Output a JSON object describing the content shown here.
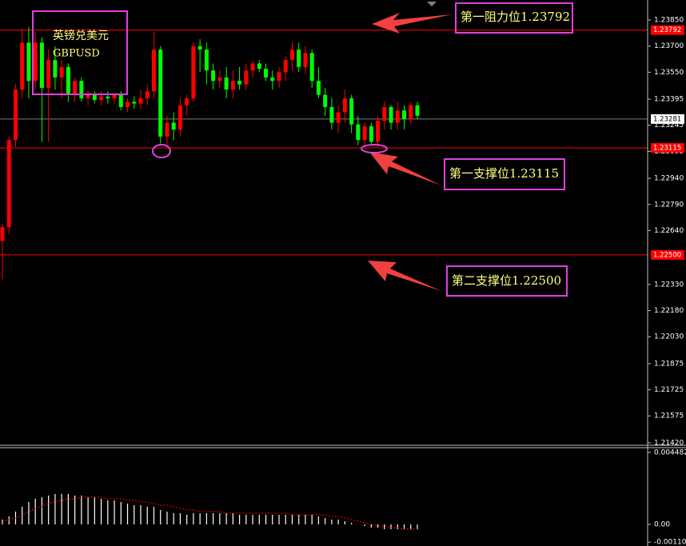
{
  "chart_data": [
    {
      "type": "candlestick",
      "title": "英镑兑美元",
      "subtitle": "GBPUSD",
      "up_color": "#ff0000",
      "down_color": "#00ff00",
      "ylim": [
        1.21406,
        1.23965
      ],
      "yticks": [
        {
          "value": 1.2385,
          "label": "1.23850"
        },
        {
          "value": 1.237,
          "label": "1.23700"
        },
        {
          "value": 1.2355,
          "label": "1.23550"
        },
        1.23395,
        1.23245,
        1.23095,
        {
          "value": 1.2294,
          "label": "1.22940"
        },
        {
          "value": 1.2279,
          "label": "1.22790"
        },
        {
          "value": 1.2264,
          "label": "1.22640"
        },
        {
          "value": 1.2233,
          "label": "1.22330"
        },
        {
          "value": 1.2218,
          "label": "1.22180"
        },
        {
          "value": 1.2203,
          "label": "1.22030"
        },
        1.21875,
        1.21725,
        1.21575,
        {
          "value": 1.2142,
          "label": "1.21420"
        }
      ],
      "price_lines": [
        1.23792,
        1.23281,
        1.23115,
        {
          "value": 1.225,
          "label": "1.22500"
        }
      ],
      "price_line_colors": [
        "#ff0000",
        "#808080",
        "#ff0000",
        "#ff0000"
      ],
      "annotations": [
        "第一阻力位1.23792",
        "第一支撑位1.23115",
        "第二支撑位1.22500"
      ],
      "open": [
        1.2258,
        1.2266,
        1.2316,
        1.2345,
        1.2372,
        1.235,
        1.2372,
        1.2346,
        1.2362,
        1.2352,
        1.2358,
        1.2342,
        1.235,
        1.234,
        1.2342,
        1.2339,
        1.2341,
        1.234,
        1.2342,
        1.2335,
        1.2338,
        1.2337,
        1.234,
        1.2344,
        1.2368,
        1.2318,
        1.2326,
        1.2322,
        1.2336,
        1.234,
        1.237,
        1.2368,
        1.2356,
        1.235,
        1.2352,
        1.2345,
        1.235,
        1.2348,
        1.2356,
        1.236,
        1.2357,
        1.2352,
        1.235,
        1.2355,
        1.2362,
        1.2368,
        1.2358,
        1.2366,
        1.235,
        1.2342,
        1.2335,
        1.2326,
        1.2332,
        1.234,
        1.2325,
        1.2316,
        1.2324,
        1.2315,
        1.2327,
        1.2335,
        1.2326,
        1.2333,
        1.2328,
        1.2336
      ],
      "high": [
        1.2268,
        1.2318,
        1.2348,
        1.238,
        1.2381,
        1.2378,
        1.2375,
        1.2368,
        1.237,
        1.2362,
        1.236,
        1.2352,
        1.2352,
        1.2344,
        1.2344,
        1.2344,
        1.2344,
        1.2343,
        1.2344,
        1.234,
        1.2341,
        1.2345,
        1.2348,
        1.2378,
        1.237,
        1.233,
        1.2332,
        1.234,
        1.2342,
        1.2372,
        1.2374,
        1.2372,
        1.236,
        1.2356,
        1.2358,
        1.2356,
        1.2358,
        1.236,
        1.2362,
        1.2362,
        1.236,
        1.2356,
        1.2358,
        1.2364,
        1.2372,
        1.2372,
        1.237,
        1.2368,
        1.2358,
        1.2346,
        1.234,
        1.2336,
        1.2345,
        1.2342,
        1.233,
        1.2326,
        1.2326,
        1.233,
        1.2338,
        1.2336,
        1.2338,
        1.2336,
        1.2338,
        1.2338
      ],
      "low": [
        1.2236,
        1.2262,
        1.2312,
        1.234,
        1.234,
        1.2345,
        1.2315,
        1.2315,
        1.2345,
        1.234,
        1.2338,
        1.2338,
        1.2338,
        1.2336,
        1.2337,
        1.2336,
        1.2337,
        1.2337,
        1.2333,
        1.2332,
        1.2334,
        1.2334,
        1.2336,
        1.234,
        1.2314,
        1.2312,
        1.2316,
        1.2318,
        1.233,
        1.2338,
        1.2355,
        1.2348,
        1.2345,
        1.2346,
        1.234,
        1.234,
        1.2345,
        1.2345,
        1.2352,
        1.2355,
        1.235,
        1.2345,
        1.2346,
        1.235,
        1.2356,
        1.2355,
        1.2354,
        1.2346,
        1.234,
        1.233,
        1.2322,
        1.232,
        1.2326,
        1.232,
        1.2313,
        1.2312,
        1.2313,
        1.2312,
        1.2322,
        1.2322,
        1.2322,
        1.2322,
        1.2325,
        1.2328
      ],
      "close": [
        1.2266,
        1.2316,
        1.2345,
        1.2372,
        1.235,
        1.2372,
        1.2346,
        1.2362,
        1.2352,
        1.2358,
        1.2342,
        1.235,
        1.234,
        1.2342,
        1.2339,
        1.2341,
        1.234,
        1.2342,
        1.2335,
        1.2338,
        1.2337,
        1.234,
        1.2344,
        1.2368,
        1.2318,
        1.2326,
        1.2322,
        1.2336,
        1.234,
        1.237,
        1.2368,
        1.2356,
        1.235,
        1.2352,
        1.2345,
        1.235,
        1.2348,
        1.2356,
        1.236,
        1.2357,
        1.2352,
        1.235,
        1.2355,
        1.2362,
        1.2368,
        1.2358,
        1.2366,
        1.235,
        1.2342,
        1.2335,
        1.2326,
        1.2332,
        1.234,
        1.2325,
        1.2316,
        1.2324,
        1.2315,
        1.2327,
        1.2335,
        1.2326,
        1.2333,
        1.2328,
        1.2336,
        1.233
      ]
    },
    {
      "type": "macd",
      "color": "#ffffff",
      "signal_color": "#ff0000",
      "ylim": [
        -0.001345,
        0.004781
      ],
      "yticks": [
        0.004482,
        {
          "value": 0,
          "label": "0.00"
        },
        -0.001103
      ],
      "values": [
        0.0003,
        0.0005,
        0.0008,
        0.0011,
        0.0014,
        0.0016,
        0.0017,
        0.0018,
        0.0019,
        0.0019,
        0.0019,
        0.0018,
        0.0018,
        0.0017,
        0.0017,
        0.0016,
        0.0015,
        0.0015,
        0.0014,
        0.0013,
        0.0012,
        0.0012,
        0.0011,
        0.0011,
        0.0009,
        0.0008,
        0.0007,
        0.0007,
        0.0006,
        0.0007,
        0.0007,
        0.0007,
        0.0007,
        0.0007,
        0.0007,
        0.0007,
        0.0006,
        0.0006,
        0.0006,
        0.0006,
        0.0006,
        0.0006,
        0.0006,
        0.0006,
        0.0006,
        0.0006,
        0.0006,
        0.0006,
        0.0005,
        0.0004,
        0.0003,
        0.0003,
        0.0002,
        0.0001,
        0.0,
        -0.0001,
        -0.0002,
        -0.0002,
        -0.0003,
        -0.0003,
        -0.0003,
        -0.0003,
        -0.0003,
        -0.0003
      ],
      "signal": [
        0.0002,
        0.0003,
        0.0004,
        0.0006,
        0.0008,
        0.001,
        0.0011,
        0.0013,
        0.0014,
        0.0015,
        0.0016,
        0.0016,
        0.0017,
        0.0017,
        0.0017,
        0.0017,
        0.0016,
        0.0016,
        0.0016,
        0.0015,
        0.0015,
        0.0014,
        0.0014,
        0.0013,
        0.0012,
        0.0012,
        0.0011,
        0.001,
        0.0009,
        0.0009,
        0.0008,
        0.0008,
        0.0008,
        0.0008,
        0.0007,
        0.0007,
        0.0007,
        0.0007,
        0.0007,
        0.0007,
        0.0007,
        0.0007,
        0.0007,
        0.0007,
        0.0006,
        0.0006,
        0.0006,
        0.0006,
        0.0006,
        0.0006,
        0.0005,
        0.0005,
        0.0004,
        0.0003,
        0.0002,
        0.0001,
        0.0,
        -0.0001,
        -0.0001,
        -0.0002,
        -0.0002,
        -0.0003,
        -0.0003,
        -0.0003
      ]
    }
  ]
}
